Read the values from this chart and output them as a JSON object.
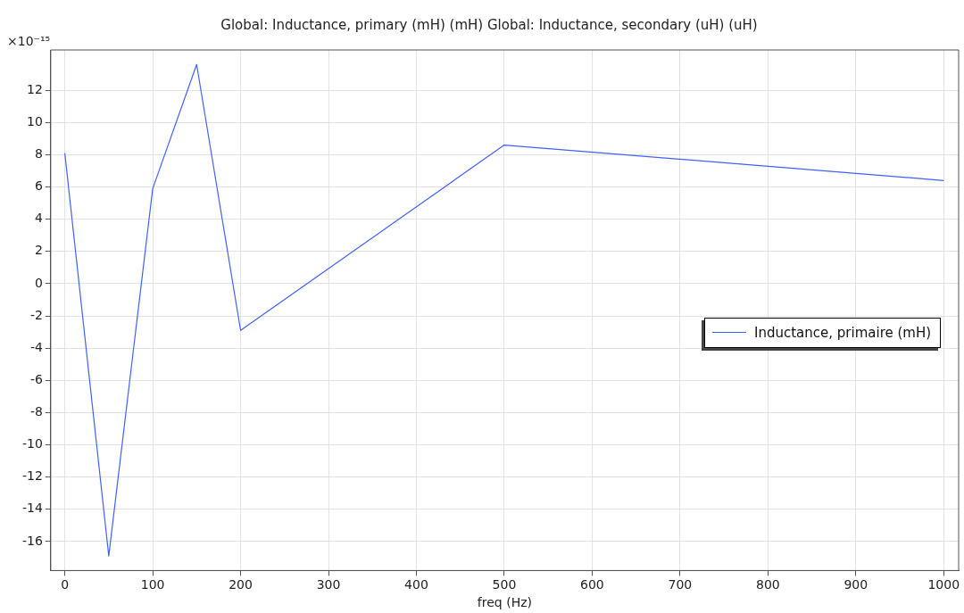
{
  "chart_data": {
    "type": "line",
    "title": "Global: Inductance, primary (mH) (mH) Global: Inductance, secondary (uH) (uH)",
    "xlabel": "freq (Hz)",
    "annotations": [
      "×10⁻¹⁵"
    ],
    "x": [
      0,
      50,
      100,
      150,
      200,
      500,
      1000
    ],
    "series": [
      {
        "name": "Inductance, primaire (mH)",
        "color": "#4060ff",
        "values": [
          8.1,
          -16.9,
          5.9,
          13.6,
          -2.9,
          8.6,
          6.4
        ]
      }
    ],
    "xlim": [
      -16,
      1017
    ],
    "xticks": [
      0,
      100,
      200,
      300,
      400,
      500,
      600,
      700,
      800,
      900,
      1000
    ],
    "ylim": [
      -17.8,
      14.5
    ],
    "yticks": [
      -16,
      -14,
      -12,
      -10,
      -8,
      -6,
      -4,
      -2,
      0,
      2,
      4,
      6,
      8,
      10,
      12
    ],
    "grid": true,
    "legend": "right",
    "marker": "none",
    "line_style": "solid"
  }
}
